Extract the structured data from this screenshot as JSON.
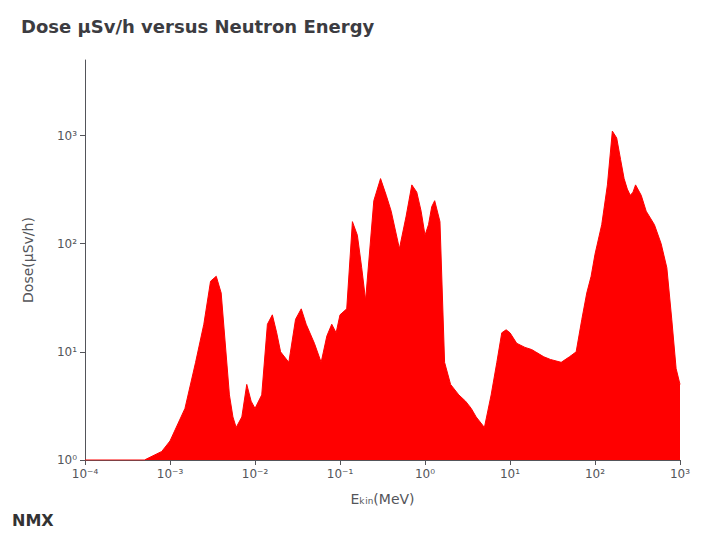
{
  "chart_data": {
    "type": "area",
    "title": "Dose μSv/h versus Neutron Energy",
    "xlabel": "Eₖᵢₙ(MeV)",
    "ylabel": "Dose(μSv/h)",
    "annotations": [
      "NMX"
    ],
    "log": true,
    "grid": false,
    "color": "#ff0000",
    "xlim": [
      0.0001,
      1000
    ],
    "ylim": [
      1,
      5000
    ],
    "xticks": [
      {
        "value": 0.0001,
        "label": "10⁻⁴"
      },
      {
        "value": 0.001,
        "label": "10⁻³"
      },
      {
        "value": 0.01,
        "label": "10⁻²"
      },
      {
        "value": 0.1,
        "label": "10⁻¹"
      },
      {
        "value": 1,
        "label": "10⁰"
      },
      {
        "value": 10,
        "label": "10¹"
      },
      {
        "value": 100,
        "label": "10²"
      },
      {
        "value": 1000,
        "label": "10³"
      }
    ],
    "yticks": [
      {
        "value": 1,
        "label": "10⁰"
      },
      {
        "value": 10,
        "label": "10¹"
      },
      {
        "value": 100,
        "label": "10²"
      },
      {
        "value": 1000,
        "label": "10³"
      }
    ],
    "x": [
      0.0001,
      0.0005,
      0.0008,
      0.001,
      0.0015,
      0.002,
      0.0025,
      0.003,
      0.0035,
      0.004,
      0.005,
      0.0055,
      0.006,
      0.007,
      0.008,
      0.009,
      0.01,
      0.012,
      0.014,
      0.016,
      0.018,
      0.02,
      0.025,
      0.03,
      0.035,
      0.04,
      0.05,
      0.06,
      0.07,
      0.08,
      0.09,
      0.1,
      0.12,
      0.14,
      0.16,
      0.18,
      0.2,
      0.25,
      0.3,
      0.35,
      0.4,
      0.5,
      0.6,
      0.7,
      0.8,
      0.9,
      1.0,
      1.1,
      1.2,
      1.3,
      1.5,
      1.7,
      2.0,
      2.5,
      3.0,
      3.5,
      4.0,
      5.0,
      6.0,
      7.0,
      8.0,
      9.0,
      10.0,
      12.0,
      15.0,
      18.0,
      20.0,
      25.0,
      30.0,
      40.0,
      50.0,
      60.0,
      70.0,
      80.0,
      90.0,
      100.0,
      120.0,
      140.0,
      160.0,
      180.0,
      200.0,
      220.0,
      240.0,
      260.0,
      280.0,
      300.0,
      350.0,
      400.0,
      500.0,
      600.0,
      700.0,
      800.0,
      900.0,
      1000.0
    ],
    "values": [
      1.0,
      1.0,
      1.2,
      1.5,
      3.0,
      8.0,
      18.0,
      45.0,
      50.0,
      35.0,
      4.0,
      2.5,
      2.0,
      2.5,
      5.0,
      3.5,
      3.0,
      4.0,
      18.0,
      22.0,
      15.0,
      10.0,
      8.0,
      20.0,
      25.0,
      18.0,
      12.0,
      8.0,
      14.0,
      18.0,
      15.0,
      22.0,
      25.0,
      160.0,
      120.0,
      60.0,
      30.0,
      250.0,
      400.0,
      280.0,
      200.0,
      90.0,
      180.0,
      350.0,
      300.0,
      200.0,
      120.0,
      150.0,
      220.0,
      250.0,
      160.0,
      8.0,
      5.0,
      4.0,
      3.5,
      3.0,
      2.5,
      2.0,
      4.0,
      8.0,
      15.0,
      16.0,
      15.0,
      12.0,
      11.0,
      10.5,
      10.0,
      9.0,
      8.5,
      8.0,
      9.0,
      10.0,
      20.0,
      35.0,
      50.0,
      80.0,
      150.0,
      350.0,
      1100.0,
      950.0,
      600.0,
      400.0,
      320.0,
      280.0,
      300.0,
      350.0,
      280.0,
      200.0,
      150.0,
      100.0,
      60.0,
      20.0,
      7.0,
      5.0
    ]
  }
}
